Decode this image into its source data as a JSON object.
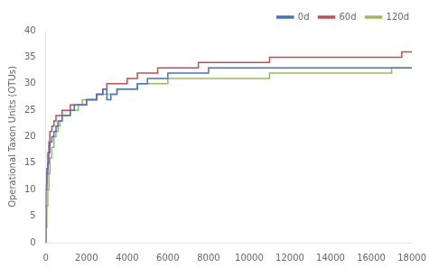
{
  "chart_data": {
    "type": "step",
    "ylabel": "Operational Taxon Units (OTUs)",
    "xlim": [
      0,
      18000
    ],
    "ylim": [
      0,
      40
    ],
    "xticks": [
      0,
      2000,
      4000,
      6000,
      8000,
      10000,
      12000,
      14000,
      16000,
      18000
    ],
    "yticks": [
      0,
      5,
      10,
      15,
      20,
      25,
      30,
      35,
      40
    ],
    "grid": false,
    "legend": "upper right",
    "series": [
      {
        "name": "0d",
        "color": "#4472c4",
        "x": [
          0,
          50,
          100,
          150,
          200,
          300,
          400,
          500,
          600,
          700,
          800,
          900,
          1000,
          1100,
          1200,
          1400,
          1600,
          1800,
          2000,
          2200,
          2500,
          2800,
          3000,
          3200,
          3500,
          3800,
          4000,
          4200,
          4500,
          5000,
          5500,
          6000,
          6500,
          7000,
          7500,
          8000,
          9000,
          10000,
          11000,
          12000,
          13000,
          14000,
          14500,
          18000
        ],
        "values": [
          0,
          10,
          13,
          15,
          17,
          19,
          20,
          21,
          22,
          23,
          23,
          24,
          24,
          24,
          24,
          25,
          26,
          26,
          26,
          27,
          27,
          28,
          29,
          27,
          28,
          29,
          29,
          29,
          29,
          30,
          31,
          31,
          32,
          32,
          32,
          32,
          33,
          33,
          33,
          33,
          33,
          33,
          33,
          33
        ]
      },
      {
        "name": "60d",
        "color": "#c0504d",
        "x": [
          0,
          50,
          100,
          150,
          200,
          300,
          400,
          500,
          600,
          700,
          800,
          900,
          1000,
          1100,
          1200,
          1400,
          1600,
          1800,
          2000,
          2200,
          2500,
          2800,
          3000,
          3200,
          3500,
          3800,
          4000,
          4200,
          4500,
          5000,
          5500,
          6000,
          6500,
          7000,
          7500,
          8000,
          9000,
          10000,
          11000,
          13000,
          14000,
          17500,
          18000
        ],
        "values": [
          0,
          11,
          14,
          17,
          19,
          21,
          22,
          23,
          24,
          24,
          24,
          25,
          25,
          25,
          25,
          26,
          26,
          26,
          26,
          27,
          27,
          28,
          29,
          30,
          30,
          30,
          30,
          31,
          31,
          32,
          32,
          33,
          33,
          33,
          33,
          34,
          34,
          34,
          34,
          35,
          35,
          35,
          36
        ]
      },
      {
        "name": "120d",
        "color": "#9bbb59",
        "x": [
          0,
          50,
          100,
          150,
          200,
          300,
          400,
          500,
          600,
          700,
          800,
          900,
          1000,
          1100,
          1200,
          1400,
          1600,
          1800,
          2000,
          2200,
          2500,
          2800,
          3000,
          3200,
          3500,
          3800,
          4000,
          4500,
          5000,
          5500,
          6000,
          6500,
          7000,
          7500,
          8000,
          9000,
          10000,
          11000,
          12000,
          13000,
          14000,
          17000,
          18000
        ],
        "values": [
          0,
          3,
          7,
          10,
          13,
          16,
          18,
          20,
          21,
          22,
          23,
          24,
          24,
          24,
          24,
          25,
          25,
          26,
          27,
          27,
          27,
          28,
          28,
          28,
          28,
          29,
          29,
          29,
          30,
          30,
          30,
          31,
          31,
          31,
          31,
          31,
          31,
          31,
          32,
          32,
          32,
          32,
          33
        ]
      }
    ]
  }
}
